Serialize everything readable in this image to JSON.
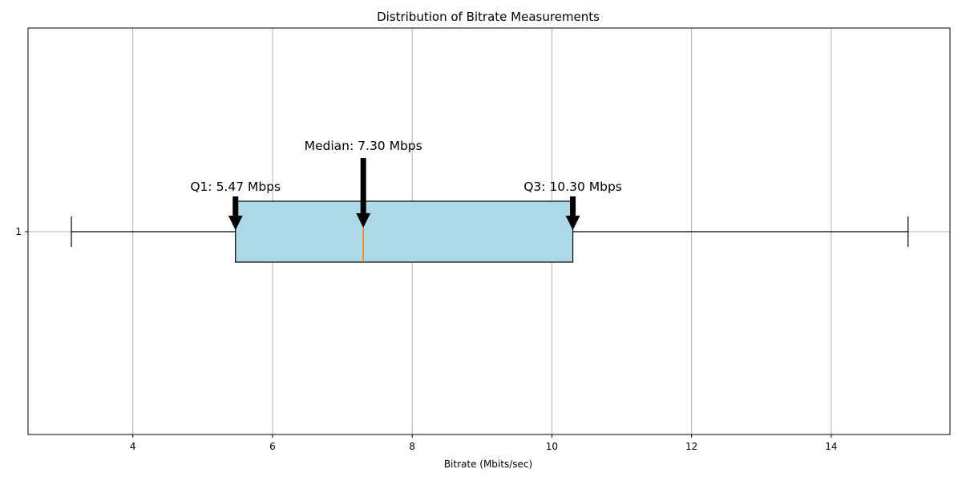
{
  "chart_data": {
    "type": "boxplot",
    "orientation": "horizontal",
    "title": "Distribution of Bitrate Measurements",
    "xlabel": "Bitrate (Mbits/sec)",
    "ylabel": "",
    "xlim": [
      2.5,
      15.7
    ],
    "xticks": [
      4,
      6,
      8,
      10,
      12,
      14
    ],
    "yticks": [
      "1"
    ],
    "grid": true,
    "box": {
      "category": "1",
      "whisker_low": 3.12,
      "q1": 5.47,
      "median": 7.3,
      "q3": 10.3,
      "whisker_high": 15.1
    },
    "annotations": [
      {
        "key": "q1",
        "text": "Q1: 5.47 Mbps",
        "x": 5.47
      },
      {
        "key": "median",
        "text": "Median: 7.30 Mbps",
        "x": 7.3
      },
      {
        "key": "q3",
        "text": "Q3: 10.30 Mbps",
        "x": 10.3
      }
    ],
    "colors": {
      "box_fill": "#add8e6",
      "median_line": "#ff7f0e",
      "grid": "#b0b0b0",
      "arrow": "#000000"
    }
  }
}
